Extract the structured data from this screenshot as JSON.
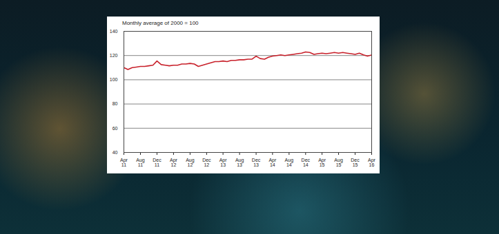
{
  "chart_data": {
    "type": "line",
    "title": "Monthly average of 2000 = 100",
    "x": [
      "2011-04",
      "2011-05",
      "2011-06",
      "2011-07",
      "2011-08",
      "2011-09",
      "2011-10",
      "2011-11",
      "2011-12",
      "2012-01",
      "2012-02",
      "2012-03",
      "2012-04",
      "2012-05",
      "2012-06",
      "2012-07",
      "2012-08",
      "2012-09",
      "2012-10",
      "2012-11",
      "2012-12",
      "2013-01",
      "2013-02",
      "2013-03",
      "2013-04",
      "2013-05",
      "2013-06",
      "2013-07",
      "2013-08",
      "2013-09",
      "2013-10",
      "2013-11",
      "2013-12",
      "2014-01",
      "2014-02",
      "2014-03",
      "2014-04",
      "2014-05",
      "2014-06",
      "2014-07",
      "2014-08",
      "2014-09",
      "2014-10",
      "2014-11",
      "2014-12",
      "2015-01",
      "2015-02",
      "2015-03",
      "2015-04",
      "2015-05",
      "2015-06",
      "2015-07",
      "2015-08",
      "2015-09",
      "2015-10",
      "2015-11",
      "2015-12",
      "2016-01",
      "2016-02",
      "2016-03",
      "2016-04"
    ],
    "values": [
      110,
      108.5,
      110,
      110.5,
      111,
      111,
      111.5,
      112,
      115.5,
      112.5,
      112,
      111.5,
      112,
      112,
      113,
      113,
      113.5,
      113,
      111,
      112,
      113,
      114,
      115,
      115,
      115.5,
      115,
      116,
      116,
      116.5,
      116.5,
      117,
      117,
      119.5,
      117.5,
      117,
      118.5,
      119.5,
      120,
      120.5,
      120,
      120.5,
      121,
      121.5,
      122,
      123,
      122.5,
      121,
      121.5,
      122,
      121.5,
      122,
      122.5,
      122,
      122.5,
      122,
      121.5,
      121,
      122,
      120.5,
      119.5,
      120.5
    ],
    "color": "#c8202a",
    "xlim": [
      "2011-04",
      "2016-04"
    ],
    "xticks": [
      {
        "value": "2011-04",
        "label": "Apr 11"
      },
      {
        "value": "2011-08",
        "label": "Aug 11"
      },
      {
        "value": "2011-12",
        "label": "Dec 11"
      },
      {
        "value": "2012-04",
        "label": "Apr 12"
      },
      {
        "value": "2012-08",
        "label": "Aug 12"
      },
      {
        "value": "2012-12",
        "label": "Dec 12"
      },
      {
        "value": "2013-04",
        "label": "Apr 13"
      },
      {
        "value": "2013-08",
        "label": "Aug 13"
      },
      {
        "value": "2013-12",
        "label": "Dec 13"
      },
      {
        "value": "2014-04",
        "label": "Apr 14"
      },
      {
        "value": "2014-08",
        "label": "Aug 14"
      },
      {
        "value": "2014-12",
        "label": "Dec 14"
      },
      {
        "value": "2015-04",
        "label": "Apr 15"
      },
      {
        "value": "2015-08",
        "label": "Aug 15"
      },
      {
        "value": "2015-12",
        "label": "Dec 15"
      },
      {
        "value": "2016-04",
        "label": "Apr 16"
      }
    ],
    "ylim": [
      40,
      140
    ],
    "yticks": [
      40,
      60,
      80,
      100,
      120,
      140
    ],
    "grid": true
  }
}
